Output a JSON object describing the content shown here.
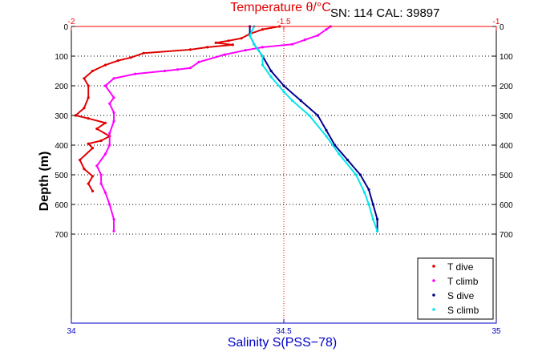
{
  "chart_data": {
    "type": "scatter",
    "title": "Temperature θ/°C",
    "annotation": "SN: 114  CAL: 39897",
    "xlabel_bottom": "Salinity S(PSS−78)",
    "xlabel_top": "Temperature θ/°C",
    "ylabel": "Depth (m)",
    "x_bottom_range": [
      34,
      35
    ],
    "x_bottom_ticks": [
      "34",
      "34.5",
      "35"
    ],
    "x_top_range": [
      -2,
      -1
    ],
    "x_top_ticks": [
      "-2",
      "-1.5",
      "-1"
    ],
    "y_range": [
      0,
      1000
    ],
    "y_reversed": true,
    "y_ticks": [
      "0",
      "100",
      "200",
      "300",
      "400",
      "500",
      "600",
      "700"
    ],
    "y_tick_values": [
      0,
      100,
      200,
      300,
      400,
      500,
      600,
      700
    ],
    "grid": "horizontal dotted at labeled depths",
    "legend_position": "bottom-right",
    "colors": {
      "t_dive": "#e00000",
      "t_climb": "#ff00ff",
      "s_dive": "#00008b",
      "s_climb": "#00e5ee",
      "top_axis": "#ff0000",
      "bottom_axis": "#0000c8",
      "reference_line": "#ff0000"
    },
    "reference_line": {
      "axis": "top",
      "value": -1.5
    },
    "series": [
      {
        "name": "T dive",
        "axis": "top",
        "color": "#e00000",
        "points": [
          [
            -1.51,
            0
          ],
          [
            -1.55,
            10
          ],
          [
            -1.58,
            25
          ],
          [
            -1.6,
            40
          ],
          [
            -1.63,
            48
          ],
          [
            -1.66,
            55
          ],
          [
            -1.62,
            62
          ],
          [
            -1.68,
            70
          ],
          [
            -1.72,
            78
          ],
          [
            -1.83,
            90
          ],
          [
            -1.86,
            105
          ],
          [
            -1.89,
            115
          ],
          [
            -1.92,
            130
          ],
          [
            -1.95,
            150
          ],
          [
            -1.97,
            175
          ],
          [
            -1.96,
            200
          ],
          [
            -1.96,
            240
          ],
          [
            -1.97,
            275
          ],
          [
            -1.99,
            300
          ],
          [
            -1.96,
            310
          ],
          [
            -1.92,
            325
          ],
          [
            -1.94,
            345
          ],
          [
            -1.91,
            370
          ],
          [
            -1.93,
            385
          ],
          [
            -1.96,
            395
          ],
          [
            -1.95,
            410
          ],
          [
            -1.98,
            450
          ],
          [
            -1.97,
            480
          ],
          [
            -1.95,
            505
          ],
          [
            -1.96,
            530
          ],
          [
            -1.95,
            555
          ]
        ]
      },
      {
        "name": "T climb",
        "axis": "top",
        "color": "#ff00ff",
        "points": [
          [
            -1.9,
            690
          ],
          [
            -1.9,
            650
          ],
          [
            -1.91,
            600
          ],
          [
            -1.92,
            560
          ],
          [
            -1.93,
            530
          ],
          [
            -1.93,
            500
          ],
          [
            -1.94,
            470
          ],
          [
            -1.92,
            430
          ],
          [
            -1.91,
            400
          ],
          [
            -1.91,
            360
          ],
          [
            -1.9,
            320
          ],
          [
            -1.9,
            290
          ],
          [
            -1.91,
            260
          ],
          [
            -1.9,
            240
          ],
          [
            -1.92,
            200
          ],
          [
            -1.9,
            175
          ],
          [
            -1.85,
            160
          ],
          [
            -1.78,
            150
          ],
          [
            -1.75,
            145
          ],
          [
            -1.72,
            140
          ],
          [
            -1.7,
            120
          ],
          [
            -1.64,
            95
          ],
          [
            -1.59,
            80
          ],
          [
            -1.55,
            70
          ],
          [
            -1.48,
            60
          ],
          [
            -1.45,
            45
          ],
          [
            -1.42,
            30
          ],
          [
            -1.4,
            10
          ],
          [
            -1.39,
            0
          ]
        ]
      },
      {
        "name": "S dive",
        "axis": "bottom",
        "color": "#00008b",
        "points": [
          [
            34.42,
            0
          ],
          [
            34.42,
            30
          ],
          [
            34.43,
            60
          ],
          [
            34.45,
            100
          ],
          [
            34.47,
            150
          ],
          [
            34.5,
            200
          ],
          [
            34.54,
            250
          ],
          [
            34.58,
            300
          ],
          [
            34.6,
            350
          ],
          [
            34.62,
            400
          ],
          [
            34.65,
            450
          ],
          [
            34.68,
            500
          ],
          [
            34.7,
            550
          ],
          [
            34.71,
            600
          ],
          [
            34.72,
            650
          ],
          [
            34.72,
            690
          ]
        ]
      },
      {
        "name": "S climb",
        "axis": "bottom",
        "color": "#00e5ee",
        "points": [
          [
            34.72,
            690
          ],
          [
            34.71,
            650
          ],
          [
            34.7,
            600
          ],
          [
            34.69,
            560
          ],
          [
            34.67,
            500
          ],
          [
            34.63,
            430
          ],
          [
            34.6,
            370
          ],
          [
            34.56,
            300
          ],
          [
            34.52,
            250
          ],
          [
            34.5,
            220
          ],
          [
            34.47,
            170
          ],
          [
            34.45,
            130
          ],
          [
            34.45,
            100
          ],
          [
            34.44,
            80
          ],
          [
            34.43,
            60
          ],
          [
            34.42,
            30
          ],
          [
            34.43,
            0
          ]
        ]
      }
    ],
    "legend": [
      "T dive",
      "T climb",
      "S dive",
      "S climb"
    ]
  }
}
